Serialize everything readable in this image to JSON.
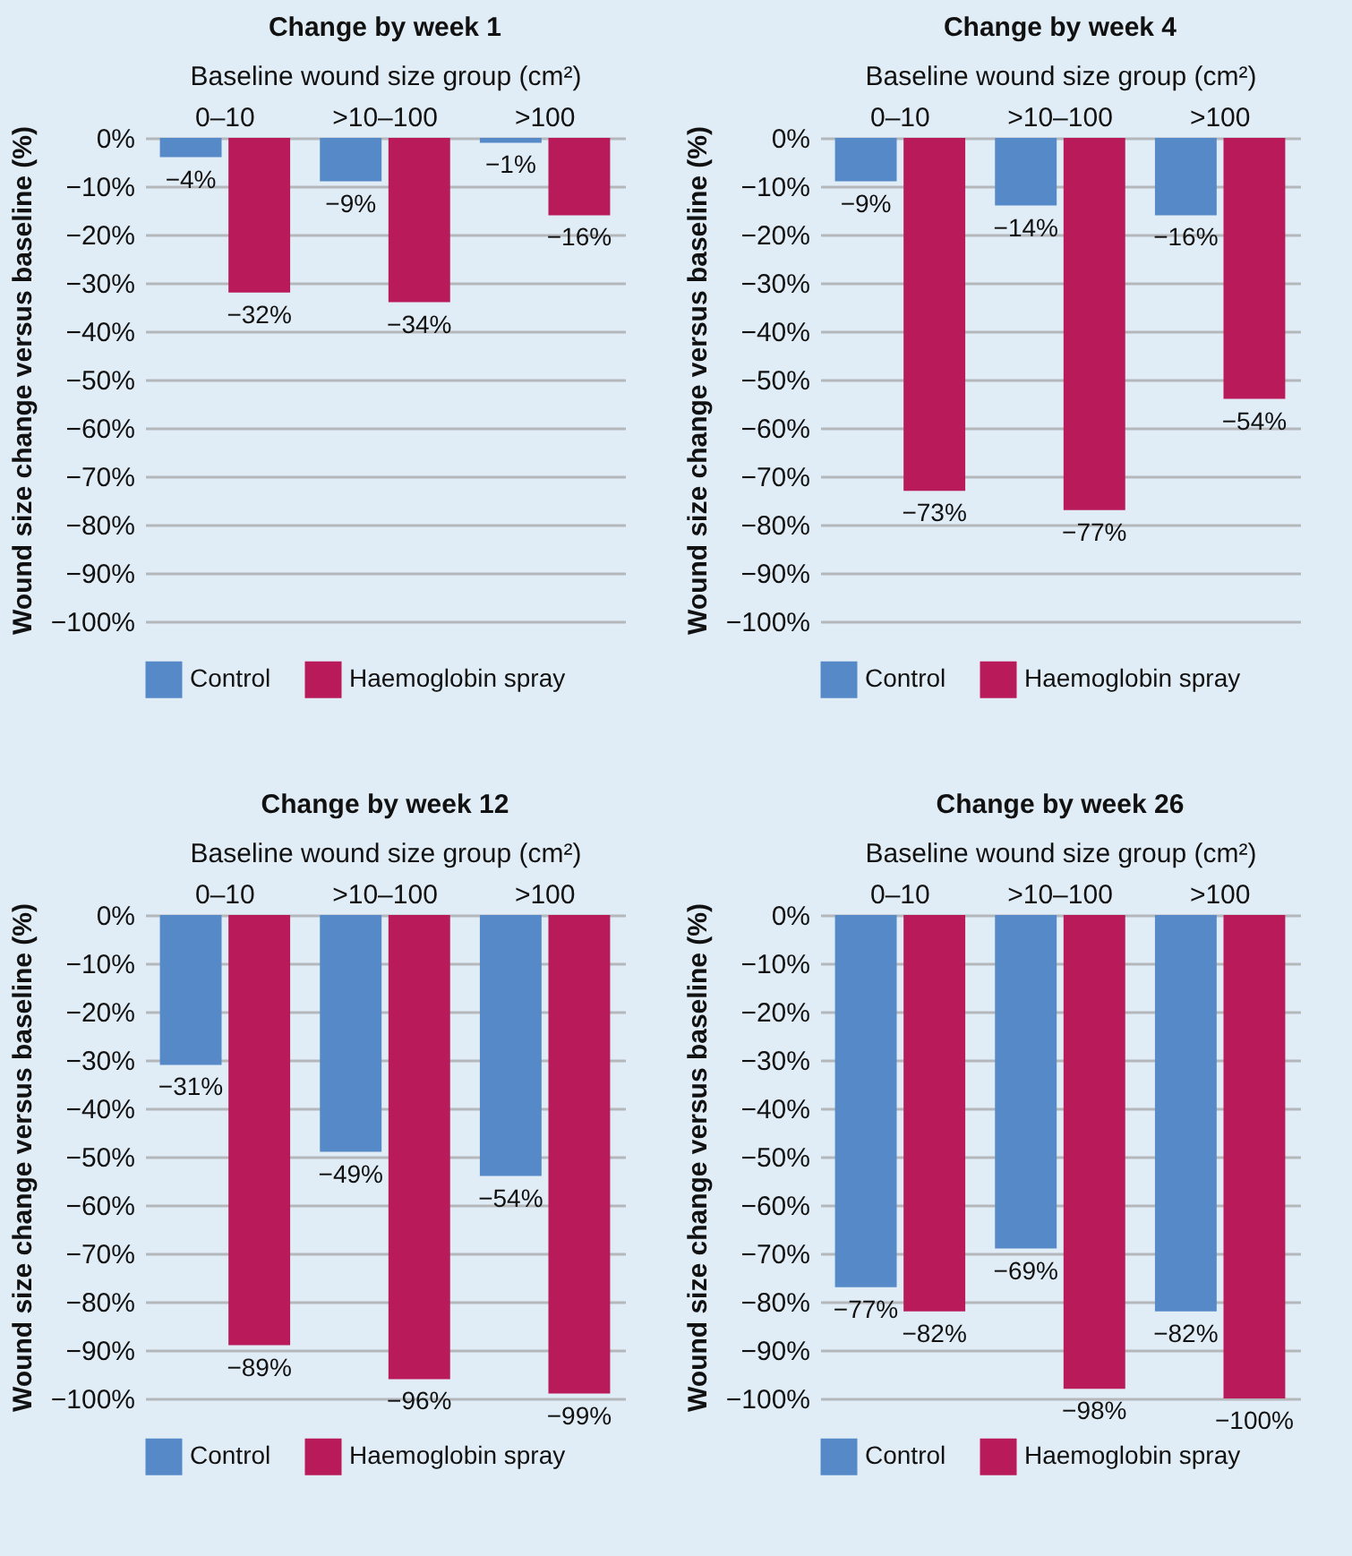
{
  "chart_data": [
    {
      "type": "bar",
      "title": "Change by week 1",
      "xlabel": "Baseline wound size group (cm²)",
      "ylabel": "Wound size change versus baseline (%)",
      "categories": [
        "0–10",
        ">10–100",
        ">100"
      ],
      "series": [
        {
          "name": "Control",
          "color": "#5589c8",
          "values": [
            -4,
            -9,
            -1
          ],
          "value_labels": [
            "−4%",
            "−9%",
            "−1%"
          ]
        },
        {
          "name": "Haemoglobin spray",
          "color": "#b91a5a",
          "values": [
            -32,
            -34,
            -16
          ],
          "value_labels": [
            "−32%",
            "−34%",
            "−16%"
          ]
        }
      ],
      "ylim": [
        -100,
        0
      ],
      "yticks": [
        {
          "value": 0,
          "label": "0%"
        },
        {
          "value": -10,
          "label": "−10%"
        },
        {
          "value": -20,
          "label": "−20%"
        },
        {
          "value": -30,
          "label": "−30%"
        },
        {
          "value": -40,
          "label": "−40%"
        },
        {
          "value": -50,
          "label": "−50%"
        },
        {
          "value": -60,
          "label": "−60%"
        },
        {
          "value": -70,
          "label": "−70%"
        },
        {
          "value": -80,
          "label": "−80%"
        },
        {
          "value": -90,
          "label": "−90%"
        },
        {
          "value": -100,
          "label": "−100%"
        }
      ],
      "grid": "y",
      "legend": "bottom"
    },
    {
      "type": "bar",
      "title": "Change by week 4",
      "xlabel": "Baseline wound size group (cm²)",
      "ylabel": "Wound size change versus baseline (%)",
      "categories": [
        "0–10",
        ">10–100",
        ">100"
      ],
      "series": [
        {
          "name": "Control",
          "color": "#5589c8",
          "values": [
            -9,
            -14,
            -16
          ],
          "value_labels": [
            "−9%",
            "−14%",
            "−16%"
          ]
        },
        {
          "name": "Haemoglobin spray",
          "color": "#b91a5a",
          "values": [
            -73,
            -77,
            -54
          ],
          "value_labels": [
            "−73%",
            "−77%",
            "−54%"
          ]
        }
      ],
      "ylim": [
        -100,
        0
      ],
      "yticks": [
        {
          "value": 0,
          "label": "0%"
        },
        {
          "value": -10,
          "label": "−10%"
        },
        {
          "value": -20,
          "label": "−20%"
        },
        {
          "value": -30,
          "label": "−30%"
        },
        {
          "value": -40,
          "label": "−40%"
        },
        {
          "value": -50,
          "label": "−50%"
        },
        {
          "value": -60,
          "label": "−60%"
        },
        {
          "value": -70,
          "label": "−70%"
        },
        {
          "value": -80,
          "label": "−80%"
        },
        {
          "value": -90,
          "label": "−90%"
        },
        {
          "value": -100,
          "label": "−100%"
        }
      ],
      "grid": "y",
      "legend": "bottom"
    },
    {
      "type": "bar",
      "title": "Change by week 12",
      "xlabel": "Baseline wound size group (cm²)",
      "ylabel": "Wound size change versus baseline (%)",
      "categories": [
        "0–10",
        ">10–100",
        ">100"
      ],
      "series": [
        {
          "name": "Control",
          "color": "#5589c8",
          "values": [
            -31,
            -49,
            -54
          ],
          "value_labels": [
            "−31%",
            "−49%",
            "−54%"
          ]
        },
        {
          "name": "Haemoglobin spray",
          "color": "#b91a5a",
          "values": [
            -89,
            -96,
            -99
          ],
          "value_labels": [
            "−89%",
            "−96%",
            "−99%"
          ]
        }
      ],
      "ylim": [
        -100,
        0
      ],
      "yticks": [
        {
          "value": 0,
          "label": "0%"
        },
        {
          "value": -10,
          "label": "−10%"
        },
        {
          "value": -20,
          "label": "−20%"
        },
        {
          "value": -30,
          "label": "−30%"
        },
        {
          "value": -40,
          "label": "−40%"
        },
        {
          "value": -50,
          "label": "−50%"
        },
        {
          "value": -60,
          "label": "−60%"
        },
        {
          "value": -70,
          "label": "−70%"
        },
        {
          "value": -80,
          "label": "−80%"
        },
        {
          "value": -90,
          "label": "−90%"
        },
        {
          "value": -100,
          "label": "−100%"
        }
      ],
      "grid": "y",
      "legend": "bottom"
    },
    {
      "type": "bar",
      "title": "Change by week 26",
      "xlabel": "Baseline wound size group (cm²)",
      "ylabel": "Wound size change versus baseline (%)",
      "categories": [
        "0–10",
        ">10–100",
        ">100"
      ],
      "series": [
        {
          "name": "Control",
          "color": "#5589c8",
          "values": [
            -77,
            -69,
            -82
          ],
          "value_labels": [
            "−77%",
            "−69%",
            "−82%"
          ]
        },
        {
          "name": "Haemoglobin spray",
          "color": "#b91a5a",
          "values": [
            -82,
            -98,
            -100
          ],
          "value_labels": [
            "−82%",
            "−98%",
            "−100%"
          ]
        }
      ],
      "ylim": [
        -100,
        0
      ],
      "yticks": [
        {
          "value": 0,
          "label": "0%"
        },
        {
          "value": -10,
          "label": "−10%"
        },
        {
          "value": -20,
          "label": "−20%"
        },
        {
          "value": -30,
          "label": "−30%"
        },
        {
          "value": -40,
          "label": "−40%"
        },
        {
          "value": -50,
          "label": "−50%"
        },
        {
          "value": -60,
          "label": "−60%"
        },
        {
          "value": -70,
          "label": "−70%"
        },
        {
          "value": -80,
          "label": "−80%"
        },
        {
          "value": -90,
          "label": "−90%"
        },
        {
          "value": -100,
          "label": "−100%"
        }
      ],
      "grid": "y",
      "legend": "bottom"
    }
  ]
}
